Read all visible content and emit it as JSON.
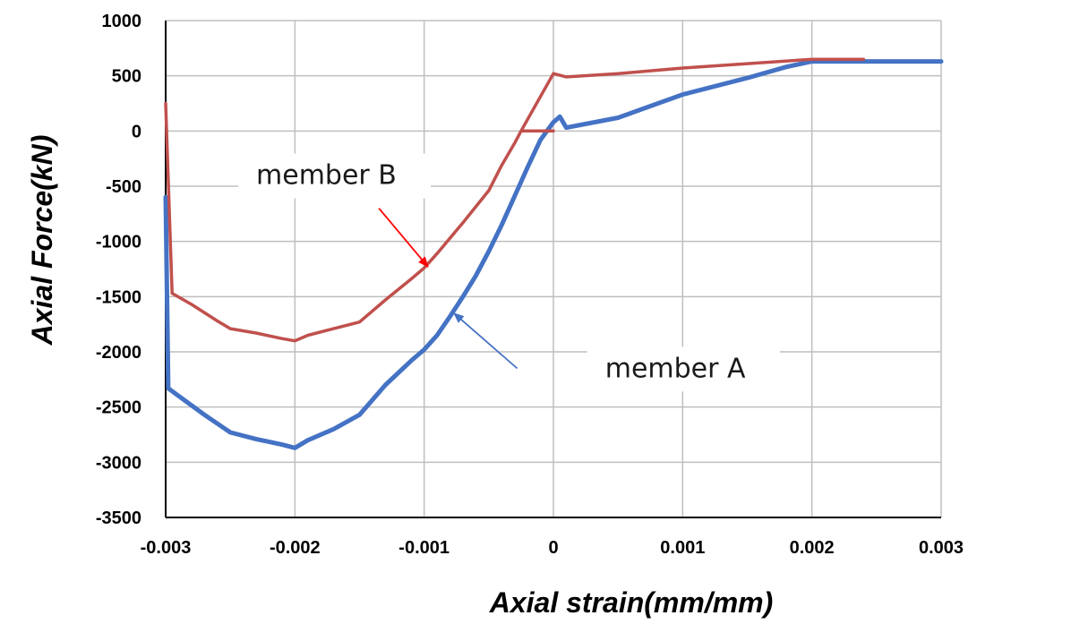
{
  "chart_data": {
    "type": "line",
    "xlabel": "Axial strain(mm/mm)",
    "ylabel": "Axial Force(kN)",
    "xlim": [
      -0.003,
      0.003
    ],
    "ylim": [
      -3500,
      1000
    ],
    "x_ticks": [
      -0.003,
      -0.002,
      -0.001,
      0,
      0.001,
      0.002,
      0.003
    ],
    "x_tick_labels": [
      "-0.003",
      "-0.002",
      "-0.001",
      "0",
      "0.001",
      "0.002",
      "0.003"
    ],
    "y_ticks": [
      1000,
      500,
      0,
      -500,
      -1000,
      -1500,
      -2000,
      -2500,
      -3000,
      -3500
    ],
    "y_tick_labels": [
      "1000",
      "500",
      "0",
      "-500",
      "-1000",
      "-1500",
      "-2000",
      "-2500",
      "-3000",
      "-3500"
    ],
    "grid": true,
    "series": [
      {
        "name": "member A",
        "color": "#4472c4",
        "points": [
          [
            -0.003,
            -600
          ],
          [
            -0.00298,
            -2330
          ],
          [
            -0.0029,
            -2400
          ],
          [
            -0.0027,
            -2570
          ],
          [
            -0.0025,
            -2730
          ],
          [
            -0.0023,
            -2790
          ],
          [
            -0.0021,
            -2840
          ],
          [
            -0.002,
            -2870
          ],
          [
            -0.0019,
            -2800
          ],
          [
            -0.0017,
            -2700
          ],
          [
            -0.0015,
            -2570
          ],
          [
            -0.0013,
            -2300
          ],
          [
            -0.0011,
            -2080
          ],
          [
            -0.001,
            -1980
          ],
          [
            -0.0009,
            -1850
          ],
          [
            -0.0008,
            -1680
          ],
          [
            -0.0007,
            -1500
          ],
          [
            -0.0006,
            -1310
          ],
          [
            -0.0005,
            -1090
          ],
          [
            -0.0004,
            -850
          ],
          [
            -0.0003,
            -590
          ],
          [
            -0.0002,
            -330
          ],
          [
            -0.0001,
            -80
          ],
          [
            0,
            80
          ],
          [
            5e-05,
            130
          ],
          [
            0.0001,
            30
          ],
          [
            0.0005,
            120
          ],
          [
            0.001,
            330
          ],
          [
            0.0015,
            480
          ],
          [
            0.0018,
            580
          ],
          [
            0.002,
            630
          ],
          [
            0.003,
            630
          ]
        ]
      },
      {
        "name": "member B",
        "color": "#c0504d",
        "points": [
          [
            -0.003,
            250
          ],
          [
            -0.00295,
            -1470
          ],
          [
            -0.0028,
            -1570
          ],
          [
            -0.0026,
            -1720
          ],
          [
            -0.0025,
            -1790
          ],
          [
            -0.0023,
            -1830
          ],
          [
            -0.0021,
            -1880
          ],
          [
            -0.002,
            -1900
          ],
          [
            -0.0019,
            -1850
          ],
          [
            -0.0017,
            -1790
          ],
          [
            -0.0015,
            -1730
          ],
          [
            -0.0013,
            -1530
          ],
          [
            -0.0011,
            -1340
          ],
          [
            -0.001,
            -1240
          ],
          [
            -0.0009,
            -1110
          ],
          [
            -0.0007,
            -830
          ],
          [
            -0.0005,
            -540
          ],
          [
            -0.0004,
            -310
          ],
          [
            -0.0003,
            -110
          ],
          [
            -0.00025,
            0
          ],
          [
            0,
            0
          ],
          [
            -0.00025,
            0
          ],
          [
            0,
            520
          ],
          [
            0.0001,
            490
          ],
          [
            0.0005,
            520
          ],
          [
            0.001,
            570
          ],
          [
            0.0015,
            610
          ],
          [
            0.002,
            650
          ],
          [
            0.0024,
            650
          ]
        ]
      }
    ],
    "annotations": [
      {
        "text": "member B",
        "arrow_from": [
          -0.00135,
          -700
        ],
        "arrow_to": [
          -0.00097,
          -1230
        ],
        "color": "#ff0000",
        "text_at": [
          -0.0023,
          -480
        ]
      },
      {
        "text": "member A",
        "arrow_from": [
          -0.00028,
          -2150
        ],
        "arrow_to": [
          -0.00077,
          -1650
        ],
        "color": "#4472c4",
        "text_at": [
          0.0004,
          -2230
        ]
      }
    ]
  }
}
